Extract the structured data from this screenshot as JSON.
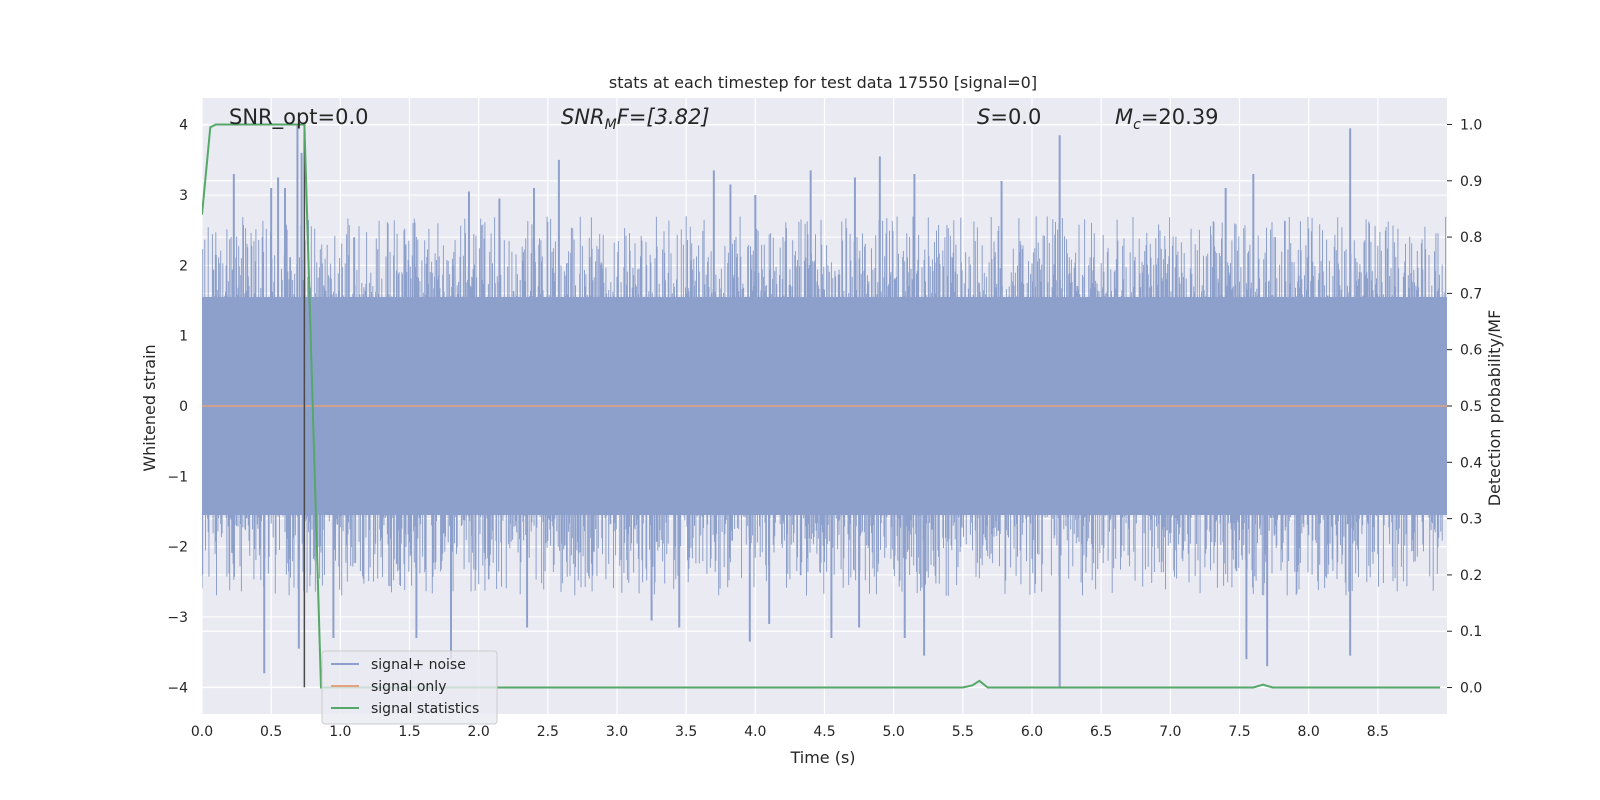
{
  "chart_data": {
    "type": "line",
    "title": "stats at each timestep for test data 17550 [signal=0]",
    "xlabel": "Time (s)",
    "ylabel": "Whitened strain",
    "y2label": "Detection probability/MF",
    "xlim": [
      0.0,
      9.0
    ],
    "ylim": [
      -4.38,
      4.38
    ],
    "y2lim": [
      -0.047,
      1.047
    ],
    "xticks": [
      "0.0",
      "0.5",
      "1.0",
      "1.5",
      "2.0",
      "2.5",
      "3.0",
      "3.5",
      "4.0",
      "4.5",
      "5.0",
      "5.5",
      "6.0",
      "6.5",
      "7.0",
      "7.5",
      "8.0",
      "8.5"
    ],
    "yticks": [
      "−4",
      "−3",
      "−2",
      "−1",
      "0",
      "1",
      "2",
      "3",
      "4"
    ],
    "y2ticks": [
      "0.0",
      "0.1",
      "0.2",
      "0.3",
      "0.4",
      "0.5",
      "0.6",
      "0.7",
      "0.8",
      "0.9",
      "1.0"
    ],
    "grid": true,
    "legend_position": "lower-left",
    "annotations": {
      "snr_opt": "SNR_opt=0.0",
      "snr_mf_base": "SNR",
      "snr_mf_sub": "M",
      "snr_mf_rest": "F=[3.82]",
      "s_var": "S",
      "s_rest": "=0.0",
      "mc_var": "M",
      "mc_sub": "c",
      "mc_rest": "=20.39"
    },
    "marker_line_x": 0.74,
    "series": [
      {
        "name": "signal+ noise",
        "color": "#8da0cb",
        "description_values": "noise band approx ±1.6 with spikes up to ±4",
        "peaks_top": [
          [
            0.1,
            2.15
          ],
          [
            0.23,
            3.3
          ],
          [
            0.5,
            3.1
          ],
          [
            0.55,
            3.25
          ],
          [
            0.6,
            3.1
          ],
          [
            0.69,
            4.0
          ],
          [
            0.72,
            3.6
          ],
          [
            1.1,
            2.4
          ],
          [
            1.93,
            3.05
          ],
          [
            2.15,
            2.95
          ],
          [
            2.4,
            3.1
          ],
          [
            2.58,
            3.5
          ],
          [
            3.7,
            3.35
          ],
          [
            3.82,
            3.15
          ],
          [
            4.0,
            3.0
          ],
          [
            4.4,
            3.35
          ],
          [
            4.72,
            3.25
          ],
          [
            4.9,
            3.55
          ],
          [
            5.15,
            3.3
          ],
          [
            5.78,
            3.2
          ],
          [
            6.2,
            3.85
          ],
          [
            7.4,
            3.1
          ],
          [
            7.6,
            3.3
          ],
          [
            8.3,
            3.95
          ]
        ],
        "peaks_bottom": [
          [
            0.45,
            -3.8
          ],
          [
            0.7,
            -3.45
          ],
          [
            0.95,
            -3.3
          ],
          [
            1.55,
            -3.3
          ],
          [
            1.8,
            -3.6
          ],
          [
            2.35,
            -3.15
          ],
          [
            3.25,
            -3.05
          ],
          [
            3.45,
            -3.15
          ],
          [
            3.96,
            -3.35
          ],
          [
            4.1,
            -3.1
          ],
          [
            4.55,
            -3.3
          ],
          [
            4.75,
            -3.15
          ],
          [
            5.08,
            -3.3
          ],
          [
            5.22,
            -3.55
          ],
          [
            6.2,
            -4.0
          ],
          [
            7.55,
            -3.6
          ],
          [
            7.7,
            -3.7
          ],
          [
            8.3,
            -3.55
          ]
        ]
      },
      {
        "name": "signal only",
        "color": "#e5a37d",
        "values_const": 0.0
      },
      {
        "name": "signal statistics",
        "color": "#55a868",
        "points": [
          [
            0.0,
            0.84
          ],
          [
            0.06,
            0.995
          ],
          [
            0.1,
            1.0
          ],
          [
            0.72,
            1.0
          ],
          [
            0.74,
            1.0
          ],
          [
            0.86,
            0.0
          ],
          [
            5.5,
            0.0
          ],
          [
            5.57,
            0.004
          ],
          [
            5.62,
            0.012
          ],
          [
            5.68,
            0.0
          ],
          [
            7.6,
            0.0
          ],
          [
            7.67,
            0.005
          ],
          [
            7.74,
            0.0
          ],
          [
            8.95,
            0.0
          ]
        ]
      }
    ]
  }
}
